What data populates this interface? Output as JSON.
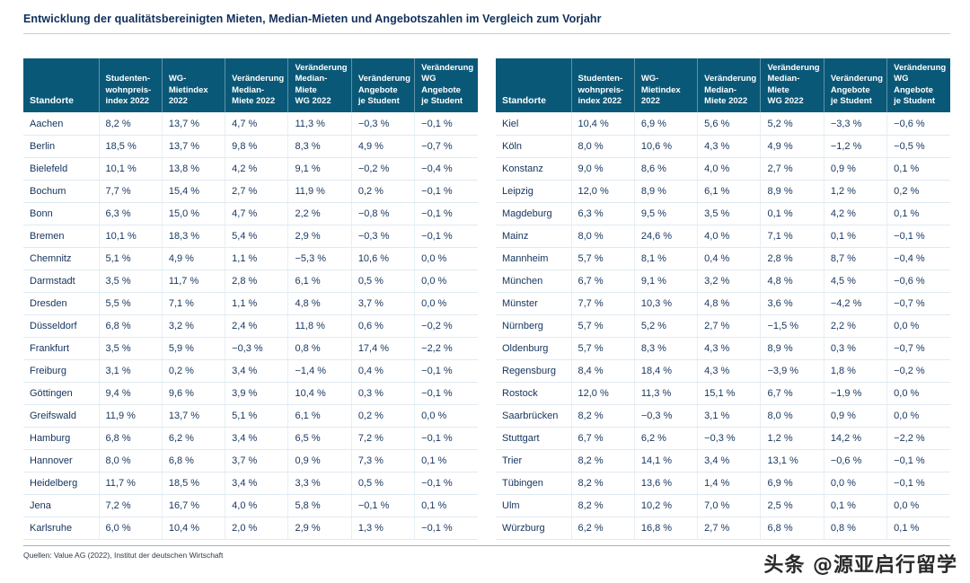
{
  "page": {
    "title": "Entwicklung der qualitätsbereinigten Mieten, Median-Mieten und Angebotszahlen im Vergleich zum Vorjahr",
    "source": "Quellen: Value AG (2022), Institut der deutschen Wirtschaft",
    "watermark": "头条 @源亚启行留学"
  },
  "colors": {
    "header_bg": "#0a5878",
    "header_text": "#ffffff",
    "body_text": "#16365f",
    "title_text": "#0f2f5a",
    "grid_line": "#dfeaf2"
  },
  "chart_data": {
    "type": "table",
    "columns": [
      "Standorte",
      "Studenten-\nwohnpreis-\nindex 2022",
      "WG-\nMietindex\n2022",
      "Veränderung\nMedian-\nMiete 2022",
      "Veränderung\nMedian-Miete\nWG 2022",
      "Veränderung\nAngebote\nje Student",
      "Veränderung\nWG Angebote\nje Student"
    ],
    "tables": [
      {
        "rows": [
          [
            "Aachen",
            "8,2 %",
            "13,7 %",
            "4,7 %",
            "11,3 %",
            "−0,3 %",
            "−0,1 %"
          ],
          [
            "Berlin",
            "18,5 %",
            "13,7 %",
            "9,8 %",
            "8,3 %",
            "4,9 %",
            "−0,7 %"
          ],
          [
            "Bielefeld",
            "10,1 %",
            "13,8 %",
            "4,2 %",
            "9,1 %",
            "−0,2 %",
            "−0,4 %"
          ],
          [
            "Bochum",
            "7,7 %",
            "15,4 %",
            "2,7 %",
            "11,9 %",
            "0,2 %",
            "−0,1 %"
          ],
          [
            "Bonn",
            "6,3 %",
            "15,0 %",
            "4,7 %",
            "2,2 %",
            "−0,8 %",
            "−0,1 %"
          ],
          [
            "Bremen",
            "10,1 %",
            "18,3 %",
            "5,4 %",
            "2,9 %",
            "−0,3 %",
            "−0,1 %"
          ],
          [
            "Chemnitz",
            "5,1 %",
            "4,9 %",
            "1,1 %",
            "−5,3 %",
            "10,6 %",
            "0,0 %"
          ],
          [
            "Darmstadt",
            "3,5 %",
            "11,7 %",
            "2,8 %",
            "6,1 %",
            "0,5 %",
            "0,0 %"
          ],
          [
            "Dresden",
            "5,5 %",
            "7,1 %",
            "1,1 %",
            "4,8 %",
            "3,7 %",
            "0,0 %"
          ],
          [
            "Düsseldorf",
            "6,8 %",
            "3,2 %",
            "2,4 %",
            "11,8 %",
            "0,6 %",
            "−0,2 %"
          ],
          [
            "Frankfurt",
            "3,5 %",
            "5,9 %",
            "−0,3 %",
            "0,8 %",
            "17,4 %",
            "−2,2 %"
          ],
          [
            "Freiburg",
            "3,1 %",
            "0,2 %",
            "3,4 %",
            "−1,4 %",
            "0,4 %",
            "−0,1 %"
          ],
          [
            "Göttingen",
            "9,4 %",
            "9,6 %",
            "3,9 %",
            "10,4 %",
            "0,3 %",
            "−0,1 %"
          ],
          [
            "Greifswald",
            "11,9 %",
            "13,7 %",
            "5,1 %",
            "6,1 %",
            "0,2 %",
            "0,0 %"
          ],
          [
            "Hamburg",
            "6,8 %",
            "6,2 %",
            "3,4 %",
            "6,5 %",
            "7,2 %",
            "−0,1 %"
          ],
          [
            "Hannover",
            "8,0 %",
            "6,8 %",
            "3,7 %",
            "0,9 %",
            "7,3 %",
            "0,1 %"
          ],
          [
            "Heidelberg",
            "11,7 %",
            "18,5 %",
            "3,4 %",
            "3,3 %",
            "0,5 %",
            "−0,1 %"
          ],
          [
            "Jena",
            "7,2 %",
            "16,7 %",
            "4,0 %",
            "5,8 %",
            "−0,1 %",
            "0,1 %"
          ],
          [
            "Karlsruhe",
            "6,0 %",
            "10,4 %",
            "2,0 %",
            "2,9 %",
            "1,3 %",
            "−0,1 %"
          ]
        ]
      },
      {
        "rows": [
          [
            "Kiel",
            "10,4 %",
            "6,9 %",
            "5,6 %",
            "5,2 %",
            "−3,3 %",
            "−0,6 %"
          ],
          [
            "Köln",
            "8,0 %",
            "10,6 %",
            "4,3 %",
            "4,9 %",
            "−1,2 %",
            "−0,5 %"
          ],
          [
            "Konstanz",
            "9,0 %",
            "8,6 %",
            "4,0 %",
            "2,7 %",
            "0,9 %",
            "0,1 %"
          ],
          [
            "Leipzig",
            "12,0 %",
            "8,9 %",
            "6,1 %",
            "8,9 %",
            "1,2 %",
            "0,2 %"
          ],
          [
            "Magdeburg",
            "6,3 %",
            "9,5 %",
            "3,5 %",
            "0,1 %",
            "4,2 %",
            "0,1 %"
          ],
          [
            "Mainz",
            "8,0 %",
            "24,6 %",
            "4,0 %",
            "7,1 %",
            "0,1 %",
            "−0,1 %"
          ],
          [
            "Mannheim",
            "5,7 %",
            "8,1 %",
            "0,4 %",
            "2,8 %",
            "8,7 %",
            "−0,4 %"
          ],
          [
            "München",
            "6,7 %",
            "9,1 %",
            "3,2 %",
            "4,8 %",
            "4,5 %",
            "−0,6 %"
          ],
          [
            "Münster",
            "7,7 %",
            "10,3 %",
            "4,8 %",
            "3,6 %",
            "−4,2 %",
            "−0,7 %"
          ],
          [
            "Nürnberg",
            "5,7 %",
            "5,2 %",
            "2,7 %",
            "−1,5 %",
            "2,2 %",
            "0,0 %"
          ],
          [
            "Oldenburg",
            "5,7 %",
            "8,3 %",
            "4,3 %",
            "8,9 %",
            "0,3 %",
            "−0,7 %"
          ],
          [
            "Regensburg",
            "8,4 %",
            "18,4 %",
            "4,3 %",
            "−3,9 %",
            "1,8 %",
            "−0,2 %"
          ],
          [
            "Rostock",
            "12,0 %",
            "11,3 %",
            "15,1 %",
            "6,7 %",
            "−1,9 %",
            "0,0 %"
          ],
          [
            "Saarbrücken",
            "8,2 %",
            "−0,3 %",
            "3,1 %",
            "8,0 %",
            "0,9 %",
            "0,0 %"
          ],
          [
            "Stuttgart",
            "6,7 %",
            "6,2 %",
            "−0,3 %",
            "1,2 %",
            "14,2 %",
            "−2,2 %"
          ],
          [
            "Trier",
            "8,2 %",
            "14,1 %",
            "3,4 %",
            "13,1 %",
            "−0,6 %",
            "−0,1 %"
          ],
          [
            "Tübingen",
            "8,2 %",
            "13,6 %",
            "1,4 %",
            "6,9 %",
            "0,0 %",
            "−0,1 %"
          ],
          [
            "Ulm",
            "8,2 %",
            "10,2 %",
            "7,0 %",
            "2,5 %",
            "0,1 %",
            "0,0 %"
          ],
          [
            "Würzburg",
            "6,2 %",
            "16,8 %",
            "2,7 %",
            "6,8 %",
            "0,8 %",
            "0,1 %"
          ]
        ]
      }
    ]
  }
}
